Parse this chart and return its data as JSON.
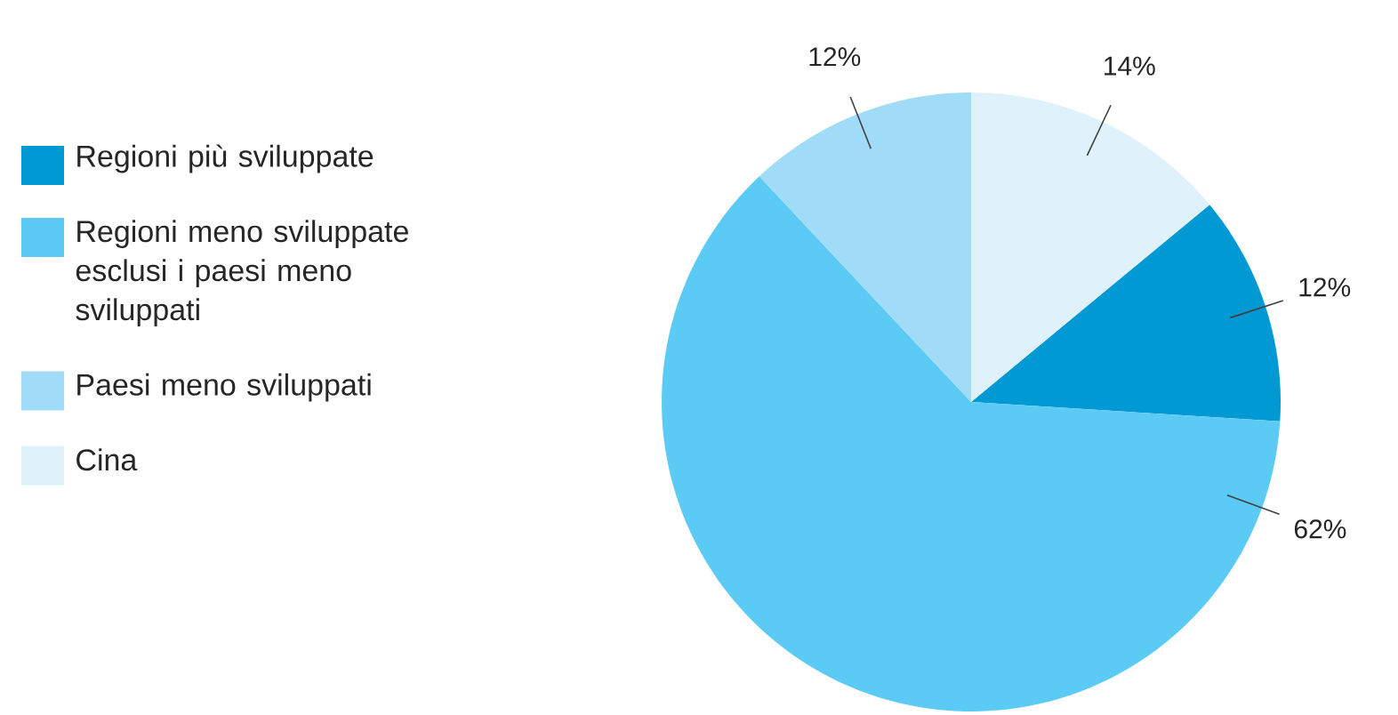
{
  "chart_data": {
    "type": "pie",
    "categories": [
      "Regioni più sviluppate",
      "Regioni meno sviluppate esclusi i paesi meno sviluppati",
      "Paesi meno sviluppati",
      "Cina"
    ],
    "values": [
      12,
      62,
      12,
      14
    ],
    "value_labels": [
      "12%",
      "62%",
      "12%",
      "14%"
    ],
    "colors": [
      "#0099d4",
      "#5bcbf5",
      "#a0dcf7",
      "#dff2fc"
    ],
    "legend": "left"
  }
}
